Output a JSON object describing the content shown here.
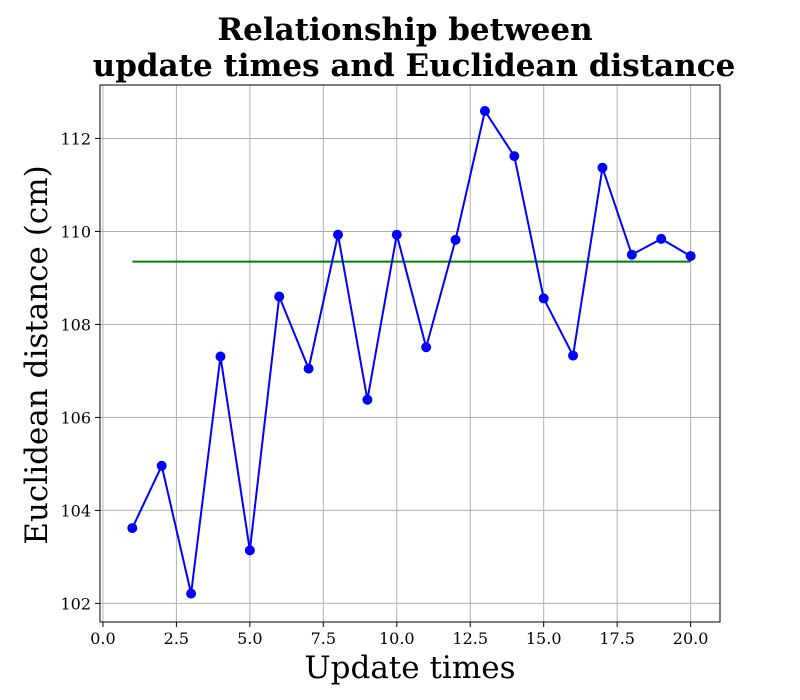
{
  "chart_data": {
    "type": "line",
    "title_lines": [
      "Relationship between",
      "update times and Euclidean distance"
    ],
    "xlabel": "Update times",
    "ylabel": "Euclidean distance (cm)",
    "xlim": [
      -0.1,
      21.0
    ],
    "ylim": [
      101.6,
      113.15
    ],
    "xticks": [
      0.0,
      2.5,
      5.0,
      7.5,
      10.0,
      12.5,
      15.0,
      17.5,
      20.0
    ],
    "xtick_labels": [
      "0.0",
      "2.5",
      "5.0",
      "7.5",
      "10.0",
      "12.5",
      "15.0",
      "17.5",
      "20.0"
    ],
    "yticks": [
      102,
      104,
      106,
      108,
      110,
      112
    ],
    "ytick_labels": [
      "102",
      "104",
      "106",
      "108",
      "110",
      "112"
    ],
    "grid": true,
    "legend": false,
    "series": [
      {
        "color": "#0000ff",
        "marker": "circle",
        "x": [
          1,
          2,
          3,
          4,
          5,
          6,
          7,
          8,
          9,
          10,
          11,
          12,
          13,
          14,
          15,
          16,
          17,
          18,
          19,
          20
        ],
        "y": [
          103.62,
          104.96,
          102.21,
          107.31,
          103.14,
          108.6,
          107.05,
          109.93,
          106.38,
          109.93,
          107.51,
          109.82,
          112.59,
          111.62,
          108.56,
          107.33,
          111.37,
          109.5,
          109.84,
          109.47
        ]
      },
      {
        "color": "#008000",
        "marker": "none",
        "x": [
          1,
          20
        ],
        "y": [
          109.35,
          109.35
        ]
      }
    ]
  }
}
